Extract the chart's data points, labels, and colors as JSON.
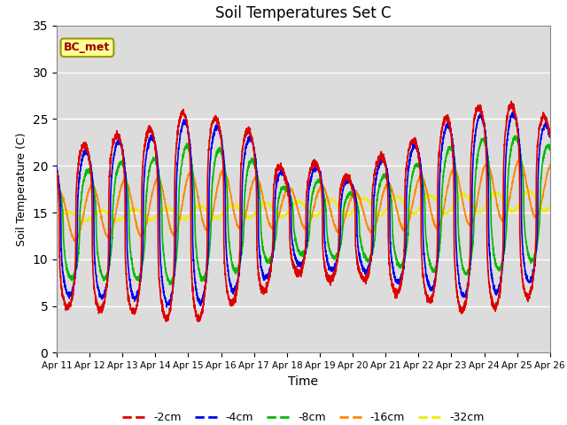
{
  "title": "Soil Temperatures Set C",
  "xlabel": "Time",
  "ylabel": "Soil Temperature (C)",
  "ylim": [
    0,
    35
  ],
  "yticks": [
    0,
    5,
    10,
    15,
    20,
    25,
    30,
    35
  ],
  "annotation": "BC_met",
  "plot_bg": "#dcdcdc",
  "fig_bg": "#ffffff",
  "legend_entries": [
    "-2cm",
    "-4cm",
    "-8cm",
    "-16cm",
    "-32cm"
  ],
  "legend_colors": [
    "#dd0000",
    "#0000ee",
    "#00bb00",
    "#ff8800",
    "#eeee00"
  ],
  "tick_labels": [
    "Apr 11",
    "Apr 12",
    "Apr 13",
    "Apr 14",
    "Apr 15",
    "Apr 16",
    "Apr 17",
    "Apr 18",
    "Apr 19",
    "Apr 20",
    "Apr 21",
    "Apr 22",
    "Apr 23",
    "Apr 24",
    "Apr 25",
    "Apr 26"
  ]
}
